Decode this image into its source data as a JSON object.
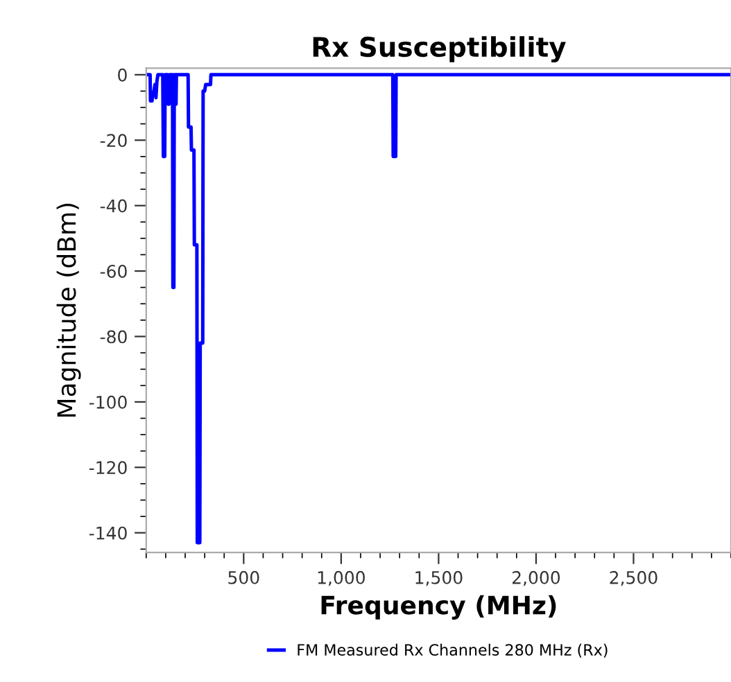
{
  "chart_data": {
    "type": "line",
    "title": "Rx Susceptibility",
    "xlabel": "Frequency (MHz)",
    "ylabel": "Magnitude (dBm)",
    "series": [
      {
        "name": "FM Measured Rx Channels 280 MHz (Rx)",
        "color": "#0000ff",
        "x": [
          0,
          20,
          22,
          30,
          32,
          40,
          45,
          50,
          55,
          60,
          85,
          88,
          95,
          97,
          110,
          112,
          118,
          120,
          135,
          137,
          142,
          144,
          148,
          150,
          153,
          155,
          215,
          217,
          230,
          232,
          245,
          247,
          260,
          262,
          275,
          277,
          290,
          292,
          300,
          305,
          330,
          332,
          1265,
          1267,
          1280,
          1282,
          3000
        ],
        "values": [
          0,
          0,
          -8,
          -8,
          -6,
          -5,
          -3,
          -7,
          -2,
          0,
          0,
          -25,
          -25,
          0,
          0,
          -9,
          -9,
          0,
          0,
          -65,
          -65,
          0,
          0,
          -9,
          -9,
          0,
          0,
          -16,
          -16,
          -23,
          -23,
          -52,
          -52,
          -143,
          -143,
          -82,
          -82,
          -5,
          -5,
          -3,
          -3,
          0,
          0,
          -25,
          -25,
          0,
          0
        ]
      }
    ],
    "xlim": [
      0,
      3000
    ],
    "ylim": [
      -146,
      2
    ],
    "xticks": [
      {
        "value": 500,
        "label": "500"
      },
      {
        "value": 1000,
        "label": "1,000"
      },
      {
        "value": 1500,
        "label": "1,500"
      },
      {
        "value": 2000,
        "label": "2,000"
      },
      {
        "value": 2500,
        "label": "2,500"
      }
    ],
    "yticks": [
      0,
      -20,
      -40,
      -60,
      -80,
      -100,
      -120,
      -140
    ],
    "grid": false,
    "legend": "bottom",
    "marker": "none",
    "line_style": "solid"
  }
}
